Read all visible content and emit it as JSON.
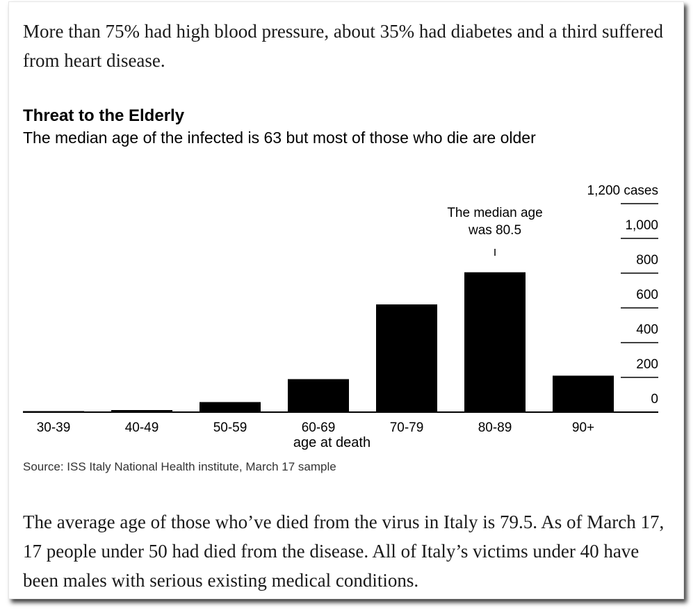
{
  "intro_paragraph": "More than 75% had high blood pressure, about 35% had diabetes and a third suffered from heart disease.",
  "chart_data": {
    "type": "bar",
    "title": "Threat to the Elderly",
    "subtitle": "The median age of the infected is 63 but most of those who die are older",
    "categories": [
      "30-39",
      "40-49",
      "50-59",
      "60-69",
      "70-79",
      "80-89",
      "90+"
    ],
    "values": [
      4,
      12,
      58,
      190,
      620,
      805,
      210
    ],
    "xlabel": "age at death",
    "ylabel": "",
    "ylim": [
      0,
      1200
    ],
    "yticks": [
      0,
      200,
      400,
      600,
      800,
      1000,
      1200
    ],
    "ytick_labels": [
      "0",
      "200",
      "400",
      "600",
      "800",
      "1,000",
      "1,200 cases"
    ],
    "y_axis_position": "right",
    "bar_color": "#000000",
    "annotation": {
      "line1": "The median age",
      "line2": "was 80.5",
      "category": "80-89"
    },
    "source": "Source: ISS Italy National Health institute, March 17 sample"
  },
  "closing_paragraph": "The average age of those who’ve died from the virus in Italy is 79.5. As of March 17, 17 people under 50 had died from the disease. All of Italy’s victims under 40 have been males with serious existing medical conditions."
}
